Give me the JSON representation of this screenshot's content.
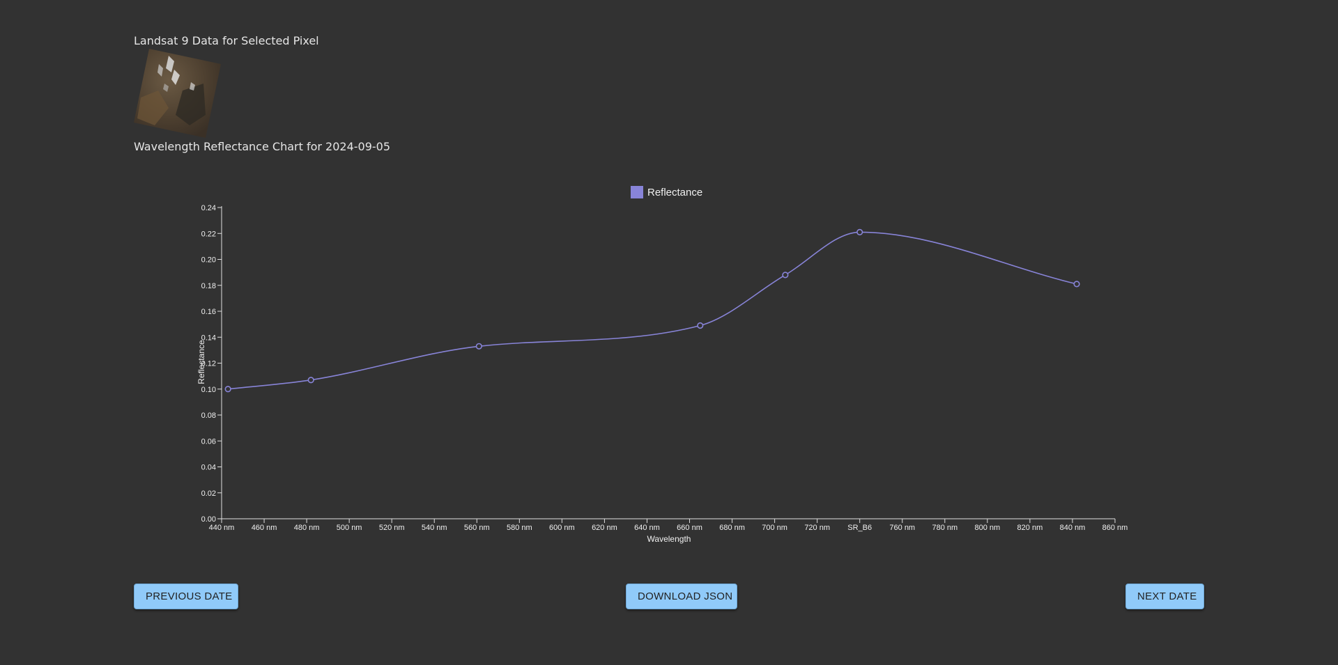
{
  "header": {
    "title": "Landsat 9 Data for Selected Pixel",
    "chart_title": "Wavelength Reflectance Chart for 2024-09-05"
  },
  "buttons": {
    "previous_label": "PREVIOUS DATE",
    "download_label": "DOWNLOAD JSON",
    "next_label": "NEXT DATE"
  },
  "colors": {
    "background": "#323232",
    "series": "#8884d8",
    "button": "#90caf9"
  },
  "chart_data": {
    "type": "line",
    "title": "",
    "xlabel": "Wavelength",
    "ylabel": "Reflectance",
    "xlim": [
      440,
      860
    ],
    "ylim": [
      0,
      0.24
    ],
    "x_ticks": [
      "440 nm",
      "460 nm",
      "480 nm",
      "500 nm",
      "520 nm",
      "540 nm",
      "560 nm",
      "580 nm",
      "600 nm",
      "620 nm",
      "640 nm",
      "660 nm",
      "680 nm",
      "700 nm",
      "720 nm",
      "SR_B6",
      "760 nm",
      "780 nm",
      "800 nm",
      "820 nm",
      "840 nm",
      "860 nm"
    ],
    "y_ticks": [
      "0.00",
      "0.02",
      "0.04",
      "0.06",
      "0.08",
      "0.10",
      "0.12",
      "0.14",
      "0.16",
      "0.18",
      "0.20",
      "0.22",
      "0.24"
    ],
    "legend": {
      "position": "top-center",
      "entries": [
        "Reflectance"
      ]
    },
    "series": [
      {
        "name": "Reflectance",
        "x": [
          443,
          482,
          561,
          665,
          705,
          740,
          842
        ],
        "y": [
          0.1,
          0.107,
          0.133,
          0.149,
          0.188,
          0.221,
          0.181
        ]
      }
    ],
    "grid": false
  }
}
